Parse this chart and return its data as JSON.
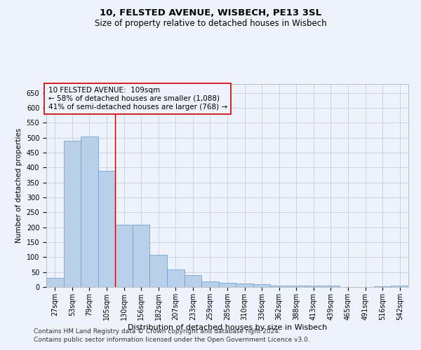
{
  "title": "10, FELSTED AVENUE, WISBECH, PE13 3SL",
  "subtitle": "Size of property relative to detached houses in Wisbech",
  "xlabel": "Distribution of detached houses by size in Wisbech",
  "ylabel": "Number of detached properties",
  "footer1": "Contains HM Land Registry data © Crown copyright and database right 2024.",
  "footer2": "Contains public sector information licensed under the Open Government Licence v3.0.",
  "annotation_line1": "10 FELSTED AVENUE:  109sqm",
  "annotation_line2": "← 58% of detached houses are smaller (1,088)",
  "annotation_line3": "41% of semi-detached houses are larger (768) →",
  "bar_categories": [
    "27sqm",
    "53sqm",
    "79sqm",
    "105sqm",
    "130sqm",
    "156sqm",
    "182sqm",
    "207sqm",
    "233sqm",
    "259sqm",
    "285sqm",
    "310sqm",
    "336sqm",
    "362sqm",
    "388sqm",
    "413sqm",
    "439sqm",
    "465sqm",
    "491sqm",
    "516sqm",
    "542sqm"
  ],
  "bar_values": [
    30,
    490,
    505,
    390,
    209,
    209,
    107,
    59,
    40,
    18,
    14,
    11,
    10,
    5,
    5,
    5,
    4,
    1,
    0,
    3,
    4
  ],
  "bar_color": "#b8d0ea",
  "bar_edge_color": "#6699cc",
  "vline_index": 3.5,
  "vline_color": "#cc0000",
  "box_edge_color": "#cc0000",
  "ylim": [
    0,
    680
  ],
  "yticks": [
    0,
    50,
    100,
    150,
    200,
    250,
    300,
    350,
    400,
    450,
    500,
    550,
    600,
    650
  ],
  "background_color": "#eef2fa",
  "grid_color": "#c5cfe0",
  "title_fontsize": 9.5,
  "subtitle_fontsize": 8.5,
  "axis_label_fontsize": 7.5,
  "tick_fontsize": 7,
  "annotation_fontsize": 7.5,
  "footer_fontsize": 6.5
}
